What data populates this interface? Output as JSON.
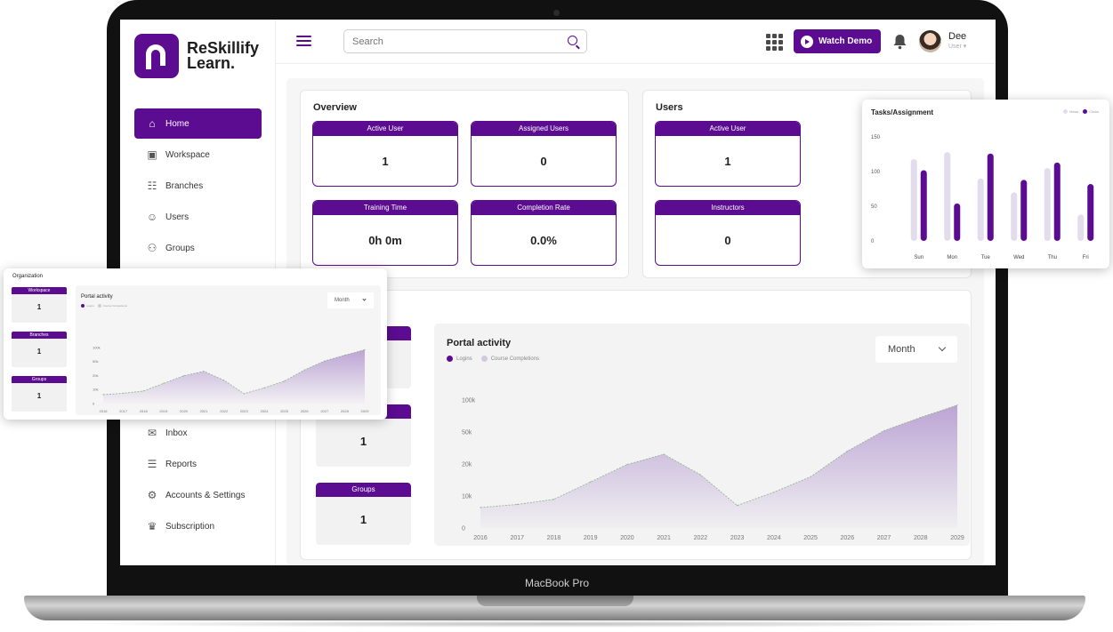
{
  "device_label": "MacBook Pro",
  "brand": {
    "name_line1": "ReSkillify",
    "name_line2": "Learn."
  },
  "sidebar": {
    "items": [
      {
        "label": "Home",
        "icon": "home-icon",
        "active": true
      },
      {
        "label": "Workspace",
        "icon": "workspace-icon"
      },
      {
        "label": "Branches",
        "icon": "branches-icon"
      },
      {
        "label": "Users",
        "icon": "users-icon"
      },
      {
        "label": "Groups",
        "icon": "groups-icon"
      }
    ],
    "lower_items": [
      {
        "label": "Inbox",
        "icon": "mail-icon"
      },
      {
        "label": "Reports",
        "icon": "report-icon"
      },
      {
        "label": "Accounts & Settings",
        "icon": "account-settings-icon"
      },
      {
        "label": "Subscription",
        "icon": "crown-icon"
      }
    ]
  },
  "topbar": {
    "search_placeholder": "Search",
    "watch_demo_label": "Watch Demo",
    "user_name": "Dee",
    "user_role": "User"
  },
  "overview": {
    "title": "Overview",
    "stats": [
      {
        "label": "Active User",
        "value": "1"
      },
      {
        "label": "Assigned Users",
        "value": "0"
      },
      {
        "label": "Training Time",
        "value": "0h 0m"
      },
      {
        "label": "Completion Rate",
        "value": "0.0%"
      }
    ]
  },
  "users": {
    "title": "Users",
    "stats": [
      {
        "label": "Active User",
        "value": "1"
      },
      {
        "label": "Instructors",
        "value": "0"
      }
    ]
  },
  "organization": {
    "cards": [
      {
        "label": "",
        "value": ""
      },
      {
        "label": "",
        "value": "1"
      },
      {
        "label": "Groups",
        "value": "1"
      }
    ]
  },
  "portal_activity": {
    "title": "Portal activity",
    "legend": [
      "Logins",
      "Course Completions"
    ],
    "period": "Month"
  },
  "overlay_org": {
    "title": "Organization",
    "cards": [
      {
        "label": "Workspace",
        "value": "1"
      },
      {
        "label": "Branches",
        "value": "1"
      },
      {
        "label": "Groups",
        "value": "1"
      }
    ],
    "chart_title": "Portal activity",
    "legend": [
      "Logins",
      "Course Completions"
    ],
    "period": "Month"
  },
  "overlay_tasks": {
    "title": "Tasks/Assignment",
    "legend": [
      "Views",
      "Clicks"
    ]
  },
  "colors": {
    "accent": "#5b0c91",
    "accent_light": "#e3dcec",
    "area_fill": "#b9a0d2"
  },
  "chart_data": [
    {
      "type": "area",
      "title": "Portal activity",
      "x": [
        "2016",
        "2017",
        "2018",
        "2019",
        "2020",
        "2021",
        "2022",
        "2023",
        "2024",
        "2025",
        "2026",
        "2027",
        "2028",
        "2029"
      ],
      "y_ticks": [
        "0",
        "10k",
        "20k",
        "50k",
        "100k"
      ],
      "series": [
        {
          "name": "Logins",
          "values": [
            20,
            23,
            28,
            45,
            62,
            72,
            52,
            22,
            35,
            50,
            75,
            95,
            108,
            120
          ]
        }
      ],
      "legend": "top-left"
    },
    {
      "type": "bar",
      "title": "Tasks/Assignment",
      "categories": [
        "Sun",
        "Mon",
        "Tue",
        "Wed",
        "Thu",
        "Fri"
      ],
      "ylim": [
        0,
        150
      ],
      "y_ticks": [
        "0",
        "50",
        "100",
        "150"
      ],
      "series": [
        {
          "name": "Views",
          "values": [
            118,
            128,
            90,
            70,
            105,
            38
          ]
        },
        {
          "name": "Clicks",
          "values": [
            102,
            54,
            126,
            88,
            113,
            82
          ]
        }
      ],
      "legend": "top-right"
    }
  ]
}
